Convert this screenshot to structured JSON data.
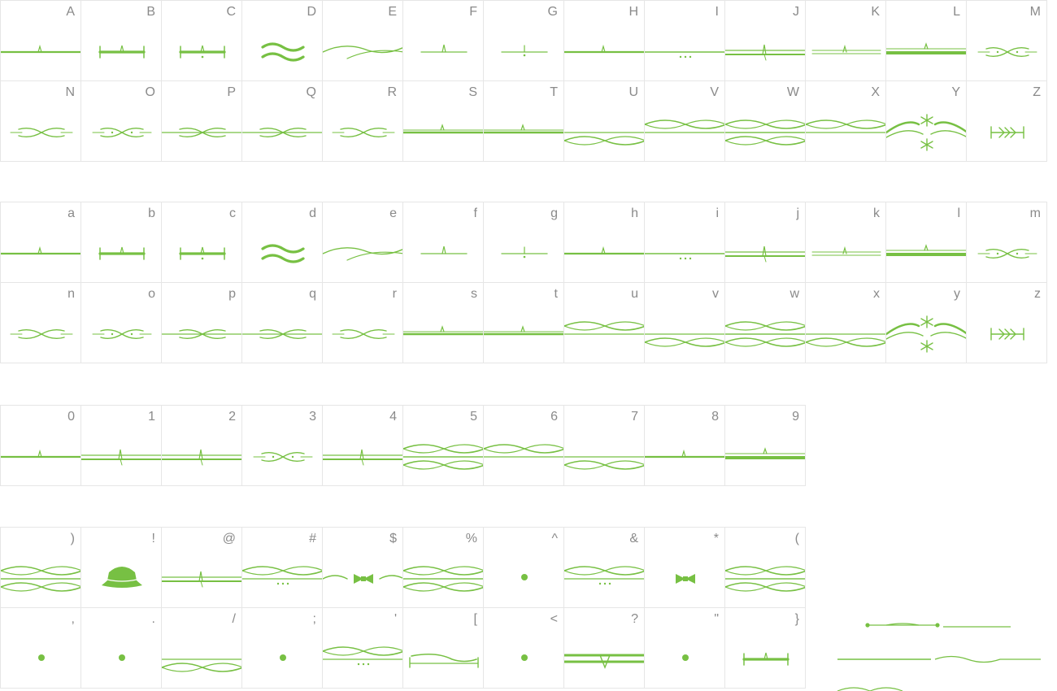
{
  "accent_color": "#77c043",
  "sections": [
    {
      "rows": [
        [
          "A",
          "B",
          "C",
          "D",
          "E",
          "F",
          "G",
          "H",
          "I",
          "J",
          "K",
          "L",
          "M"
        ],
        [
          "N",
          "O",
          "P",
          "Q",
          "R",
          "S",
          "T",
          "U",
          "V",
          "W",
          "X",
          "Y",
          "Z"
        ]
      ]
    },
    {
      "rows": [
        [
          "a",
          "b",
          "c",
          "d",
          "e",
          "f",
          "g",
          "h",
          "i",
          "j",
          "k",
          "l",
          "m"
        ],
        [
          "n",
          "o",
          "p",
          "q",
          "r",
          "s",
          "t",
          "u",
          "v",
          "w",
          "x",
          "y",
          "z"
        ]
      ]
    },
    {
      "rows": [
        [
          "0",
          "1",
          "2",
          "3",
          "4",
          "5",
          "6",
          "7",
          "8",
          "9"
        ]
      ]
    },
    {
      "rows": [
        [
          ")",
          "!",
          "@",
          "#",
          "$",
          "%",
          "^",
          "&",
          "*",
          "("
        ],
        [
          ",",
          ".",
          "/",
          ";",
          "'",
          "[",
          "<",
          "?",
          "\"",
          "}"
        ]
      ]
    }
  ],
  "glyph_kinds": {
    "A": "line-tick",
    "B": "bracket",
    "C": "bracket-dot",
    "D": "wave-bold",
    "E": "swoosh",
    "F": "short-tick",
    "G": "short-tick-dot",
    "H": "line-tick",
    "I": "line-dots",
    "J": "double-line-tick",
    "K": "thin-line-tick",
    "L": "bold-line-tick",
    "M": "loop-dots",
    "N": "loop",
    "O": "loop-dots",
    "P": "loop-line",
    "Q": "loop-line",
    "R": "loop",
    "S": "line-bump",
    "T": "line-bump",
    "U": "wave-lower",
    "V": "wave-upper",
    "W": "double-wave",
    "X": "wave-upper",
    "Y": "snowflake-swirl",
    "Z": "arrow-bar",
    "a": "line-tick",
    "b": "bracket",
    "c": "bracket-dot",
    "d": "wave-bold",
    "e": "swoosh",
    "f": "short-tick",
    "g": "short-tick-dot",
    "h": "line-tick",
    "i": "line-dots",
    "j": "double-line-tick",
    "k": "thin-line-tick",
    "l": "bold-line-tick",
    "m": "loop-dots",
    "n": "loop",
    "o": "loop-dots",
    "p": "loop-line",
    "q": "loop-line",
    "r": "loop",
    "s": "line-bump",
    "t": "line-bump",
    "u": "wave-upper",
    "v": "wave-lower",
    "w": "double-wave",
    "x": "wave-lower",
    "y": "snowflake-swirl",
    "z": "arrow-bar",
    "0": "line-tick",
    "1": "double-line-tick",
    "2": "double-line-tick",
    "3": "loop-dots",
    "4": "double-line-tick",
    "5": "double-wave",
    "6": "wave-upper",
    "7": "wave-lower",
    "8": "line-tick",
    "9": "bold-line-tick",
    ")": "double-wave",
    "!": "hat",
    "@": "double-line-tick",
    "#": "wave-dots",
    "$": "bowtie-swirl",
    "%": "double-wave",
    "^": "dot",
    "&": "wave-dots",
    "*": "bowtie",
    "(": "double-wave",
    ",": "dot",
    ".": "dot",
    "/": "wave-lower",
    ";": "dot",
    "'": "wave-dots",
    "[": "bracket-swirl",
    "<": "dot",
    "?": "bold-bracket",
    "\"": "dot",
    "}": "bracket"
  }
}
